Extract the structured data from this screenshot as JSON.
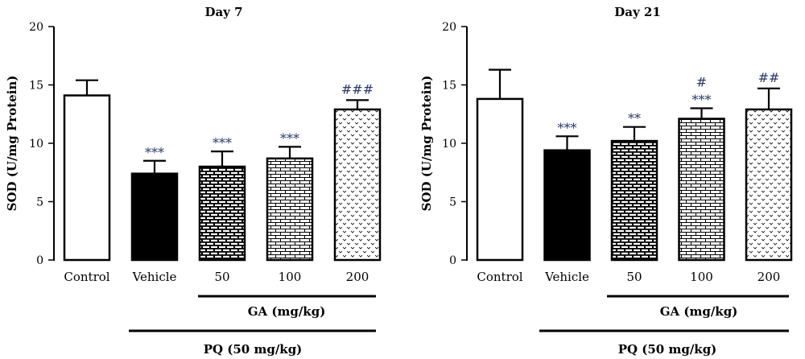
{
  "chart_data": [
    {
      "type": "bar",
      "title": "Day 7",
      "ylabel": "SOD (U/mg Protein)",
      "ylim": [
        0,
        20
      ],
      "yticks": [
        0,
        5,
        10,
        15,
        20
      ],
      "categories": [
        "Control",
        "Vehicle",
        "50",
        "100",
        "200"
      ],
      "values": [
        14.1,
        7.4,
        8.0,
        8.7,
        12.9
      ],
      "errors": [
        1.3,
        1.1,
        1.3,
        1.0,
        0.8
      ],
      "significance": [
        "",
        "***",
        "***",
        "***",
        "###"
      ],
      "patterns": [
        "white",
        "black",
        "brick-dense",
        "brick-light",
        "chevron-dots"
      ],
      "group_labels": {
        "ga": "GA (mg/kg)",
        "pq": "PQ (50 mg/kg)"
      }
    },
    {
      "type": "bar",
      "title": "Day 21",
      "ylabel": "SOD (U/mg Protein)",
      "ylim": [
        0,
        20
      ],
      "yticks": [
        0,
        5,
        10,
        15,
        20
      ],
      "categories": [
        "Control",
        "Vehicle",
        "50",
        "100",
        "200"
      ],
      "values": [
        13.8,
        9.4,
        10.2,
        12.1,
        12.9
      ],
      "errors": [
        2.5,
        1.2,
        1.2,
        0.9,
        1.8
      ],
      "significance": [
        "",
        "***",
        "**",
        "***",
        "##"
      ],
      "significance_top": [
        "",
        "",
        "",
        "#",
        ""
      ],
      "patterns": [
        "white",
        "black",
        "brick-dense",
        "brick-light",
        "chevron-dots"
      ],
      "group_labels": {
        "ga": "GA (mg/kg)",
        "pq": "PQ (50 mg/kg)"
      }
    }
  ],
  "colors": {
    "sig": "#2b3a6b",
    "ink": "#000000"
  }
}
